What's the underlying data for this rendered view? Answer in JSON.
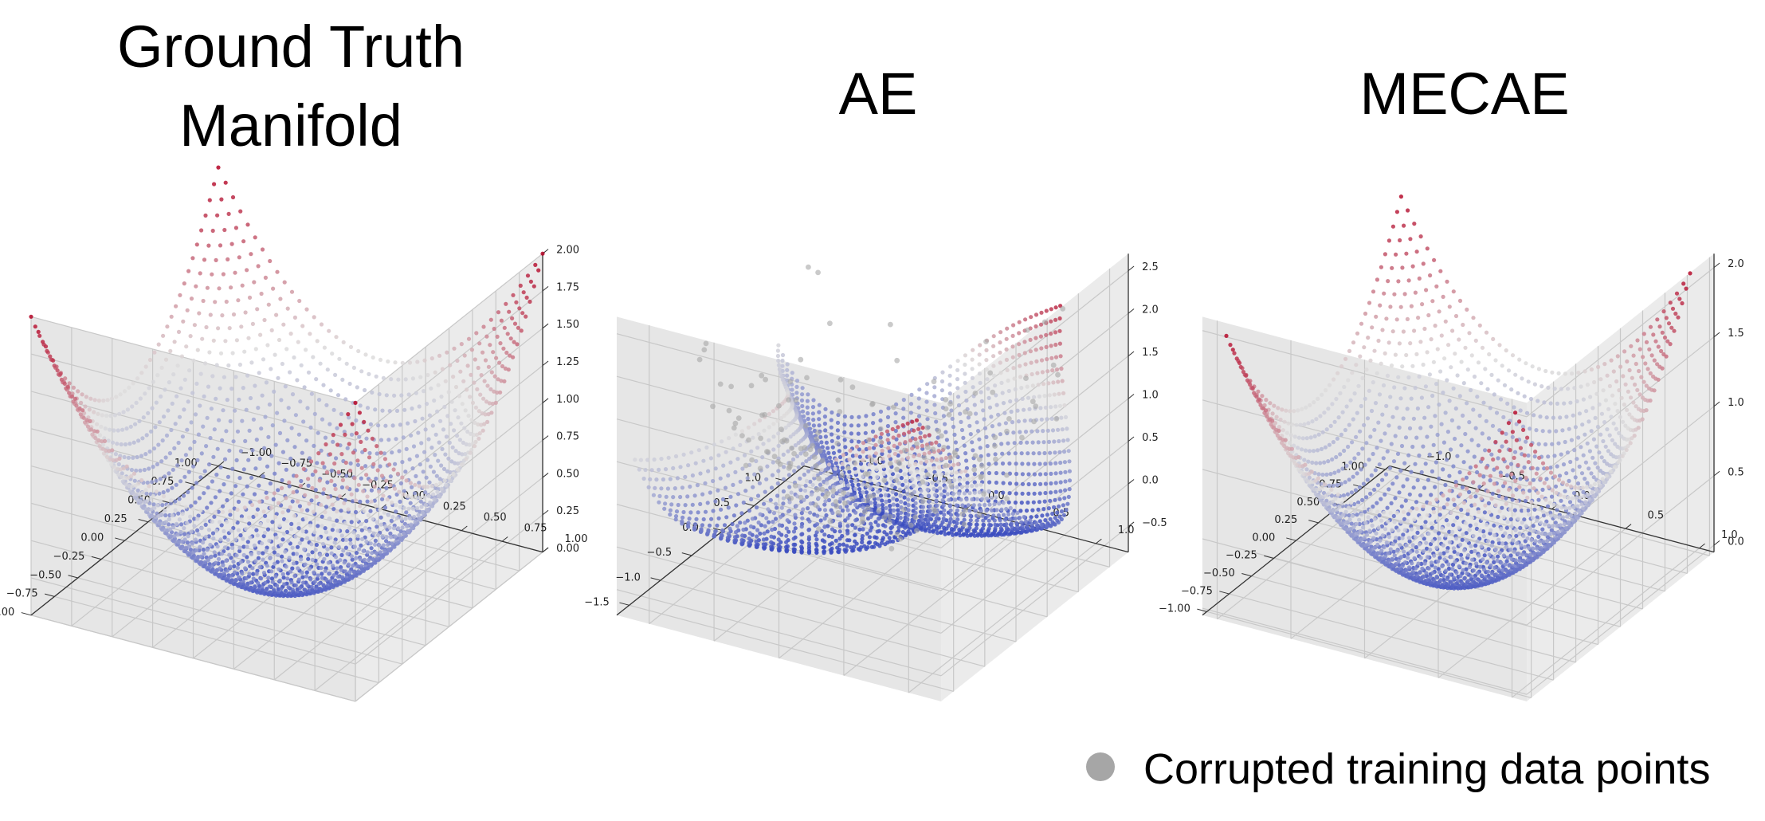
{
  "panels": [
    {
      "title_lines": [
        "Ground Truth",
        "Manifold"
      ]
    },
    {
      "title_lines": [
        "AE"
      ]
    },
    {
      "title_lines": [
        "MECAE"
      ]
    }
  ],
  "legend": {
    "label": "Corrupted training data points",
    "marker_color": "#a6a6a6"
  },
  "colormap": {
    "name": "coolwarm",
    "low": "#3b4cc0",
    "mid": "#dddcdc",
    "high": "#b40426"
  },
  "chart_data": [
    {
      "type": "scatter3d",
      "title": "Ground Truth Manifold",
      "surface": "z = x^2 + y^2",
      "x_ticks": [
        -1.0,
        -0.75,
        -0.5,
        -0.25,
        0.0,
        0.25,
        0.5,
        0.75,
        1.0
      ],
      "y_ticks": [
        -1.0,
        -0.75,
        -0.5,
        -0.25,
        0.0,
        0.25,
        0.5,
        0.75,
        1.0
      ],
      "z_ticks": [
        0.0,
        0.25,
        0.5,
        0.75,
        1.0,
        1.25,
        1.5,
        1.75,
        2.0
      ],
      "x_tick_labels": [
        "−1.00",
        "−0.75",
        "−0.50",
        "−0.25",
        "0.00",
        "0.25",
        "0.50",
        "0.75",
        "1.00"
      ],
      "y_tick_labels": [
        "−1.00",
        "−0.75",
        "−0.50",
        "−0.25",
        "0.00",
        "0.25",
        "0.50",
        "0.75",
        "1.00"
      ],
      "z_tick_labels": [
        "0.00",
        "0.25",
        "0.50",
        "0.75",
        "1.00",
        "1.25",
        "1.50",
        "1.75",
        "2.00"
      ],
      "xlim": [
        -1,
        1
      ],
      "ylim": [
        -1,
        1
      ],
      "zlim": [
        0,
        2
      ],
      "grid": true
    },
    {
      "type": "scatter3d",
      "title": "AE",
      "surface": "distorted reconstruction of z = x^2 + y^2",
      "x_ticks": [
        -1.5,
        -1.0,
        -0.5,
        0.0,
        0.5,
        1.0
      ],
      "y_ticks": [
        -1.0,
        -0.5,
        0.0,
        0.5,
        1.0
      ],
      "z_ticks": [
        -0.5,
        0.0,
        0.5,
        1.0,
        1.5,
        2.0,
        2.5
      ],
      "x_tick_labels": [
        "−1.5",
        "−1.0",
        "−0.5",
        "0.0",
        "0.5",
        "1.0"
      ],
      "y_tick_labels": [
        "−1.0",
        "−0.5",
        "0.0",
        "0.5",
        "1.0"
      ],
      "z_tick_labels": [
        "−0.5",
        "0.0",
        "0.5",
        "1.0",
        "1.5",
        "2.0",
        "2.5"
      ],
      "xlim": [
        -1.7,
        1.3
      ],
      "ylim": [
        -1.25,
        1.25
      ],
      "zlim": [
        -0.8,
        2.7
      ],
      "grid": true,
      "noise_points": 180
    },
    {
      "type": "scatter3d",
      "title": "MECAE",
      "surface": "reconstruction close to z = x^2 + y^2",
      "x_ticks": [
        -1.0,
        -0.75,
        -0.5,
        -0.25,
        0.0,
        0.25,
        0.5,
        0.75,
        1.0
      ],
      "y_ticks": [
        -1.0,
        -0.5,
        0.0,
        0.5,
        1.0
      ],
      "z_ticks": [
        0.0,
        0.5,
        1.0,
        1.5,
        2.0
      ],
      "x_tick_labels": [
        "−1.00",
        "−0.75",
        "−0.50",
        "−0.25",
        "0.00",
        "0.25",
        "0.50",
        "0.75",
        "1.00"
      ],
      "y_tick_labels": [
        "−1.0",
        "−0.5",
        "0.0",
        "0.5",
        "1.0"
      ],
      "z_tick_labels": [
        "0.0",
        "0.5",
        "1.0",
        "1.5",
        "2.0"
      ],
      "xlim": [
        -1.05,
        1.05
      ],
      "ylim": [
        -1.1,
        1.1
      ],
      "zlim": [
        -0.05,
        2.1
      ],
      "grid": true
    }
  ]
}
